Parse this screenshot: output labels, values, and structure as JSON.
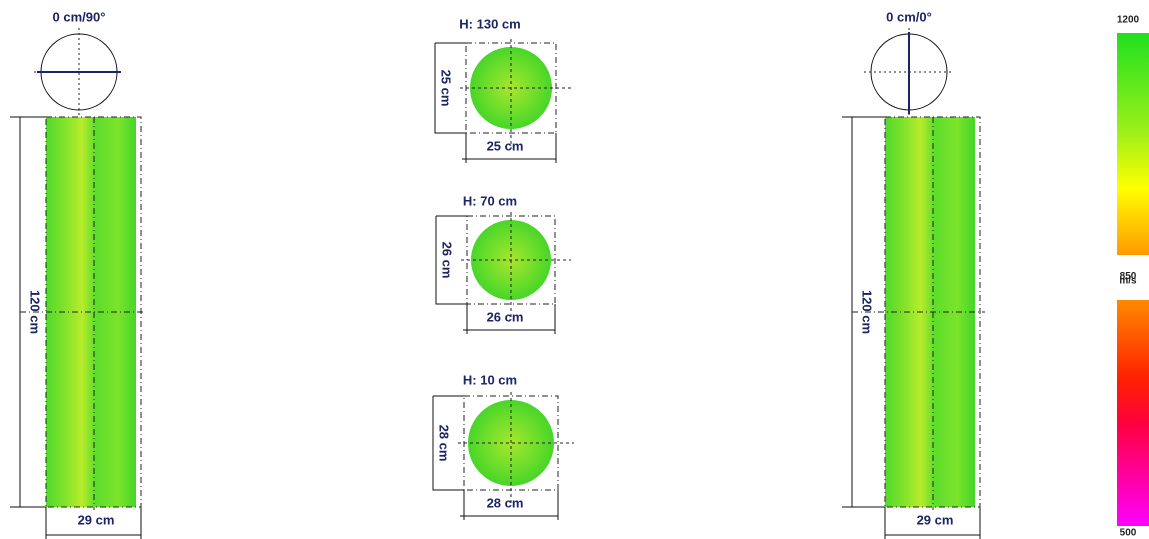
{
  "views": [
    {
      "label": "0 cm/90°",
      "height": "120 cm",
      "width": "29 cm"
    },
    {
      "label": "0 cm/0°",
      "height": "120 cm",
      "width": "29 cm"
    }
  ],
  "sections": [
    {
      "label": "H: 130 cm",
      "depth": "25 cm",
      "width": "25 cm"
    },
    {
      "label": "H: 70 cm",
      "depth": "26 cm",
      "width": "26 cm"
    },
    {
      "label": "H: 10 cm",
      "depth": "28 cm",
      "width": "28 cm"
    }
  ],
  "legend": {
    "ticks": [
      1200,
      850,
      500
    ],
    "range": [
      500,
      1200
    ],
    "unit": "m/s"
  }
}
